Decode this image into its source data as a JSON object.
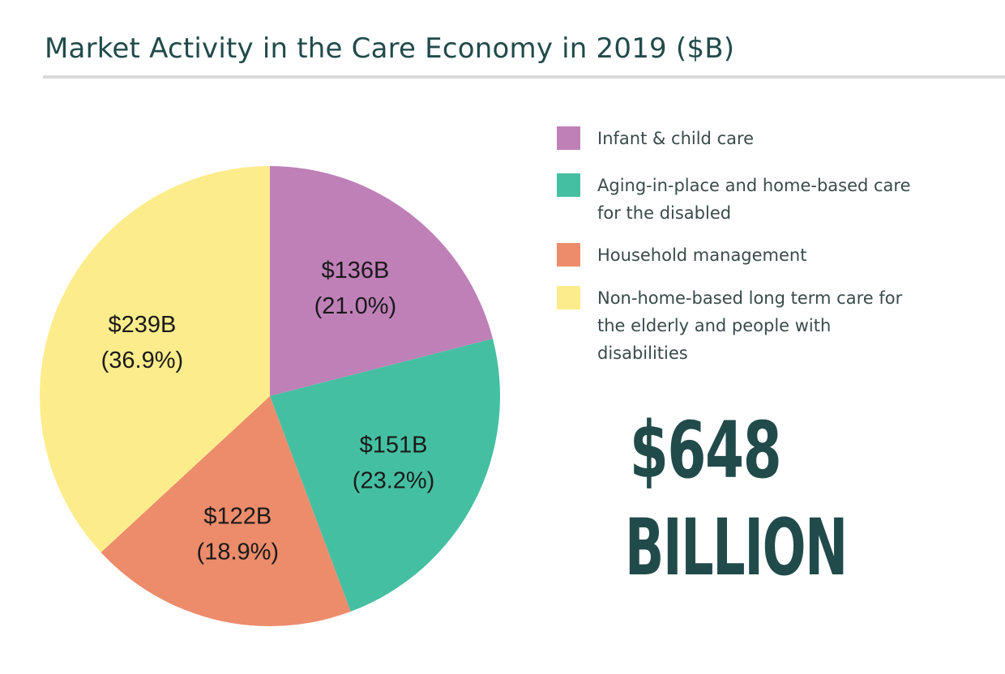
{
  "chart_data": {
    "type": "pie",
    "title": "Market Activity in the Care Economy in 2019 ($B)",
    "categories": [
      "Infant & child care",
      "Aging-in-place and home-based care for the disabled",
      "Household management",
      "Non-home-based long term care for the elderly and people with disabilities"
    ],
    "values": [
      136,
      151,
      122,
      239
    ],
    "percents": [
      21.0,
      23.2,
      18.9,
      36.9
    ],
    "data_labels": [
      {
        "value": "$136B",
        "percent": "(21.0%)"
      },
      {
        "value": "$151B",
        "percent": "(23.2%)"
      },
      {
        "value": "$122B",
        "percent": "(18.9%)"
      },
      {
        "value": "$239B",
        "percent": "(36.9%)"
      }
    ],
    "colors": [
      "#bf80b8",
      "#45bfa2",
      "#ed8c6b",
      "#fdec8c"
    ],
    "legend_position": "right",
    "start": "top, clockwise"
  },
  "total": {
    "amount": "$648",
    "unit": "BILLION"
  },
  "colors": {
    "title": "#214b4a",
    "total": "#214b4a",
    "rule": "#d9d9d9"
  }
}
